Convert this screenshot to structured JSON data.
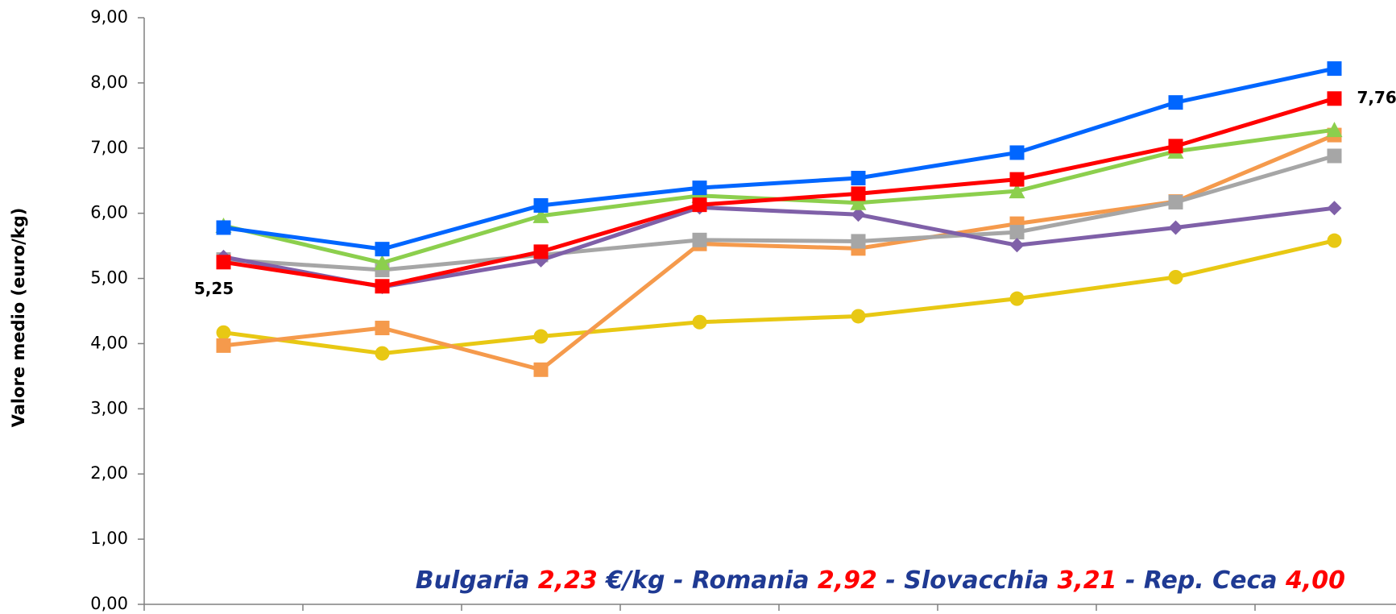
{
  "chart_data": {
    "type": "line",
    "y_axis_label": "Valore medio (euro/kg)",
    "categories": [
      null,
      null,
      null,
      null,
      null,
      null,
      null,
      null
    ],
    "ylim": [
      0,
      9
    ],
    "yticks": [
      {
        "value": 0,
        "label": "0,00"
      },
      {
        "value": 1,
        "label": "1,00"
      },
      {
        "value": 2,
        "label": "2,00"
      },
      {
        "value": 3,
        "label": "3,00"
      },
      {
        "value": 4,
        "label": "4,00"
      },
      {
        "value": 5,
        "label": "5,00"
      },
      {
        "value": 6,
        "label": "6,00"
      },
      {
        "value": 7,
        "label": "7,00"
      },
      {
        "value": 8,
        "label": "8,00"
      },
      {
        "value": 9,
        "label": "9,00"
      }
    ],
    "series": [
      {
        "color": "#e8c813",
        "marker": "circle",
        "values": [
          4.17,
          3.85,
          4.11,
          4.33,
          4.42,
          4.69,
          5.02,
          5.58
        ]
      },
      {
        "color": "#f59a4c",
        "marker": "square",
        "values": [
          3.97,
          4.24,
          3.6,
          5.53,
          5.46,
          5.84,
          6.18,
          7.2
        ]
      },
      {
        "color": "#a6a6a6",
        "marker": "square",
        "values": [
          5.29,
          5.13,
          5.36,
          5.59,
          5.57,
          5.71,
          6.17,
          6.88
        ]
      },
      {
        "color": "#7f60a8",
        "marker": "diamond",
        "values": [
          5.33,
          4.87,
          5.28,
          6.09,
          5.98,
          5.51,
          5.78,
          6.08
        ]
      },
      {
        "color": "#8ccf4d",
        "marker": "triangle",
        "values": [
          5.81,
          5.24,
          5.96,
          6.27,
          6.16,
          6.34,
          6.95,
          7.28
        ]
      },
      {
        "color": "#0066ff",
        "marker": "square",
        "values": [
          5.78,
          5.45,
          6.12,
          6.39,
          6.54,
          6.93,
          7.7,
          8.22
        ]
      },
      {
        "color": "#ff0000",
        "marker": "square",
        "values": [
          5.25,
          4.88,
          5.41,
          6.13,
          6.3,
          6.52,
          7.03,
          7.76
        ],
        "value_labels": [
          "5,25",
          null,
          null,
          null,
          null,
          null,
          null,
          "7,76"
        ]
      }
    ],
    "annotation": {
      "parts": [
        "Bulgaria ",
        "2,23",
        " €/kg - Romania ",
        "2,92",
        " - Slovacchia ",
        "3,21",
        " - Rep. Ceca ",
        "4,00"
      ],
      "colors": [
        "#1f3a93",
        "#ff0000",
        "#1f3a93",
        "#ff0000",
        "#1f3a93",
        "#ff0000",
        "#1f3a93",
        "#ff0000"
      ]
    }
  }
}
